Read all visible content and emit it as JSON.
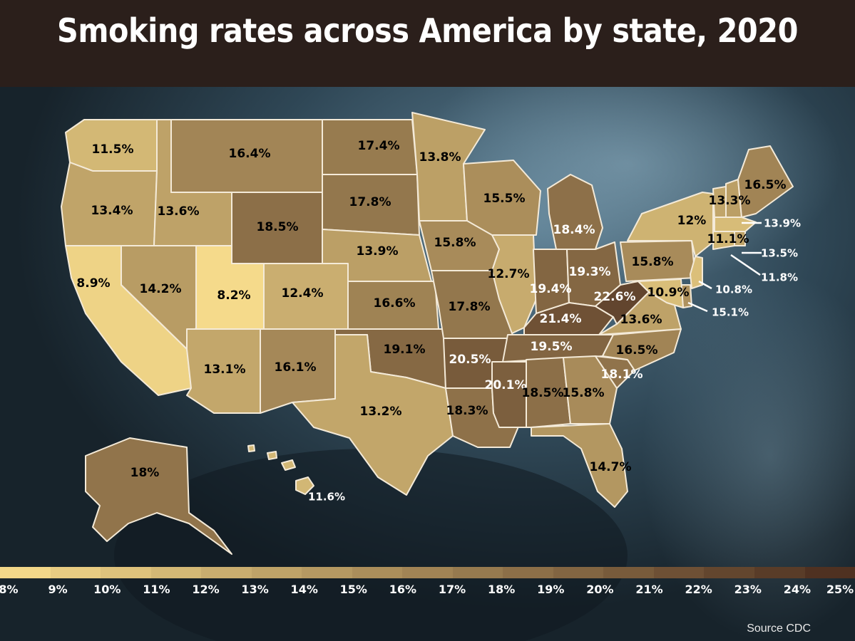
{
  "title": "Smoking rates across America by state, 2020",
  "source": "Source CDC",
  "colors": {
    "header_bg": "#2b1f1b",
    "scale_low": "#f7dc8c",
    "scale_high": "#4a2c1e",
    "background": "#1c2a33"
  },
  "legend": {
    "ticks": [
      "8%",
      "9%",
      "10%",
      "11%",
      "12%",
      "13%",
      "14%",
      "15%",
      "16%",
      "17%",
      "18%",
      "19%",
      "20%",
      "21%",
      "22%",
      "23%",
      "24%",
      "25%"
    ],
    "min": 8,
    "max": 25
  },
  "states": {
    "WA": {
      "label": "11.5%",
      "value": 11.5
    },
    "OR": {
      "label": "13.4%",
      "value": 13.4
    },
    "CA": {
      "label": "8.9%",
      "value": 8.9
    },
    "ID": {
      "label": "13.6%",
      "value": 13.6
    },
    "NV": {
      "label": "14.2%",
      "value": 14.2
    },
    "UT": {
      "label": "8.2%",
      "value": 8.2
    },
    "AZ": {
      "label": "13.1%",
      "value": 13.1
    },
    "MT": {
      "label": "16.4%",
      "value": 16.4
    },
    "WY": {
      "label": "18.5%",
      "value": 18.5
    },
    "CO": {
      "label": "12.4%",
      "value": 12.4
    },
    "NM": {
      "label": "16.1%",
      "value": 16.1
    },
    "ND": {
      "label": "17.4%",
      "value": 17.4
    },
    "SD": {
      "label": "17.8%",
      "value": 17.8
    },
    "NE": {
      "label": "13.9%",
      "value": 13.9
    },
    "KS": {
      "label": "16.6%",
      "value": 16.6
    },
    "OK": {
      "label": "19.1%",
      "value": 19.1
    },
    "TX": {
      "label": "13.2%",
      "value": 13.2
    },
    "MN": {
      "label": "13.8%",
      "value": 13.8
    },
    "IA": {
      "label": "15.8%",
      "value": 15.8
    },
    "MO": {
      "label": "17.8%",
      "value": 17.8
    },
    "AR": {
      "label": "20.5%",
      "value": 20.5
    },
    "LA": {
      "label": "18.3%",
      "value": 18.3
    },
    "WI": {
      "label": "15.5%",
      "value": 15.5
    },
    "IL": {
      "label": "12.7%",
      "value": 12.7
    },
    "MI": {
      "label": "18.4%",
      "value": 18.4
    },
    "IN": {
      "label": "19.4%",
      "value": 19.4
    },
    "OH": {
      "label": "19.3%",
      "value": 19.3
    },
    "KY": {
      "label": "21.4%",
      "value": 21.4
    },
    "TN": {
      "label": "19.5%",
      "value": 19.5
    },
    "MS": {
      "label": "20.1%",
      "value": 20.1
    },
    "AL": {
      "label": "18.5%",
      "value": 18.5
    },
    "GA": {
      "label": "15.8%",
      "value": 15.8
    },
    "FL": {
      "label": "14.7%",
      "value": 14.7
    },
    "SC": {
      "label": "18.1%",
      "value": 18.1
    },
    "NC": {
      "label": "16.5%",
      "value": 16.5
    },
    "VA": {
      "label": "13.6%",
      "value": 13.6
    },
    "WV": {
      "label": "22.6%",
      "value": 22.6
    },
    "PA": {
      "label": "15.8%",
      "value": 15.8
    },
    "NY": {
      "label": "12%",
      "value": 12
    },
    "VT": {
      "label": "13.3%",
      "value": 13.3
    },
    "NH": {
      "label": "13.9%",
      "value": 13.9
    },
    "ME": {
      "label": "16.5%",
      "value": 16.5
    },
    "MA": {
      "label": "11.1%",
      "value": 11.1
    },
    "RI": {
      "label": "13.5%",
      "value": 13.5
    },
    "CT": {
      "label": "11.8%",
      "value": 11.8
    },
    "NJ": {
      "label": "10.8%",
      "value": 10.8
    },
    "DE": {
      "label": "15.1%",
      "value": 15.1
    },
    "MD": {
      "label": "10.9%",
      "value": 10.9
    },
    "AK": {
      "label": "18%",
      "value": 18
    },
    "HI": {
      "label": "11.6%",
      "value": 11.6
    }
  }
}
